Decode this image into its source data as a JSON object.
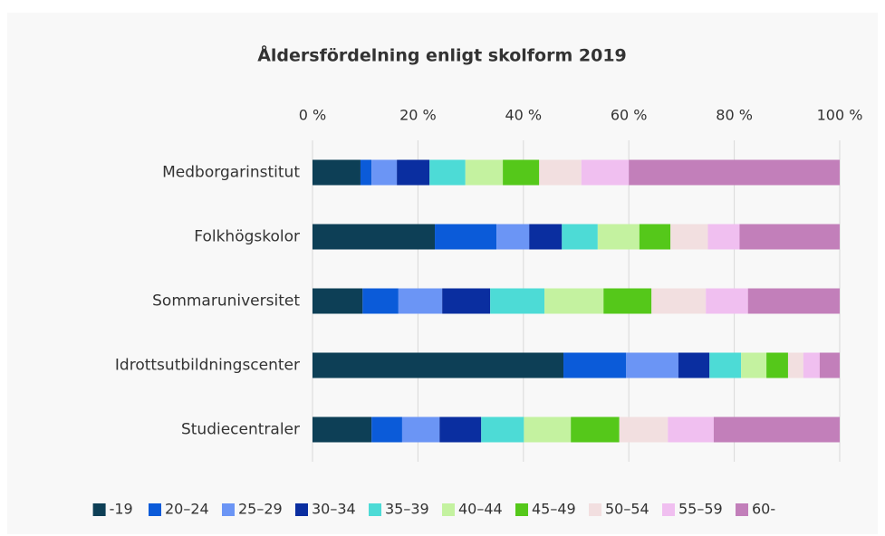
{
  "chart_data": {
    "type": "stacked_barh",
    "title": "Åldersfördelning enligt skolform 2019",
    "categories": [
      "Medborgarinstitut",
      "Folkhögskolor",
      "Sommaruniversitet",
      "Idrottsutbildningscenter",
      "Studiecentraler"
    ],
    "series": [
      {
        "name": "-19",
        "color": "#0d3f56",
        "values": [
          9.1,
          23.2,
          9.5,
          47.6,
          11.2
        ]
      },
      {
        "name": "20–24",
        "color": "#0b5bd9",
        "values": [
          2.1,
          11.7,
          6.8,
          11.9,
          5.8
        ]
      },
      {
        "name": "25–29",
        "color": "#6b95f5",
        "values": [
          4.8,
          6.2,
          8.3,
          9.9,
          7.1
        ]
      },
      {
        "name": "30–34",
        "color": "#0a2ea0",
        "values": [
          6.2,
          6.2,
          9.1,
          5.9,
          7.9
        ]
      },
      {
        "name": "35–39",
        "color": "#4ddbd6",
        "values": [
          6.8,
          6.8,
          10.3,
          6.0,
          8.1
        ]
      },
      {
        "name": "40–44",
        "color": "#c4f2a0",
        "values": [
          7.1,
          7.9,
          11.2,
          4.8,
          8.9
        ]
      },
      {
        "name": "45–49",
        "color": "#55c81a",
        "values": [
          6.9,
          5.9,
          9.1,
          4.1,
          9.2
        ]
      },
      {
        "name": "50–54",
        "color": "#f2dfe0",
        "values": [
          8.0,
          7.1,
          10.3,
          2.9,
          9.2
        ]
      },
      {
        "name": "55–59",
        "color": "#f0bff0",
        "values": [
          9.0,
          6.0,
          8.0,
          3.1,
          8.7
        ]
      },
      {
        "name": "60-",
        "color": "#c27fba",
        "values": [
          40.0,
          19.0,
          17.4,
          3.8,
          23.9
        ]
      }
    ],
    "xlim": [
      0,
      100
    ],
    "xticks": [
      {
        "value": 0,
        "label": "0 %"
      },
      {
        "value": 20,
        "label": "20 %"
      },
      {
        "value": 40,
        "label": "40 %"
      },
      {
        "value": 60,
        "label": "60 %"
      },
      {
        "value": 80,
        "label": "80 %"
      },
      {
        "value": 100,
        "label": "100 %"
      }
    ],
    "grid": true,
    "legend": "bottom"
  }
}
